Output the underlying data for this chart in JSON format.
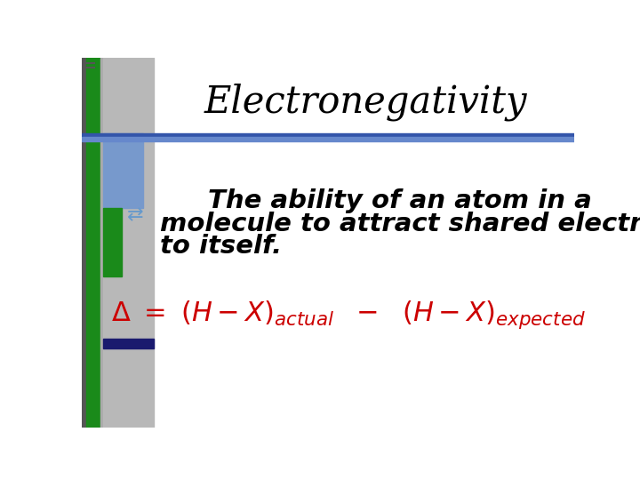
{
  "title": "Electronegativity",
  "title_fontsize": 30,
  "title_color": "#000000",
  "bg_color": "#ffffff",
  "bullet_text_line1": "The ability of an atom in a",
  "bullet_text_line2": "molecule to attract shared electrons",
  "bullet_text_line3": "to itself.",
  "bullet_fontsize": 21,
  "bullet_color": "#000000",
  "formula_color": "#cc0000",
  "formula_fontsize": 22,
  "sidebar_bg": "#c0c0c0",
  "green_color": "#1a8a1a",
  "blue_color": "#6699cc",
  "dark_navy": "#1a1a6e",
  "mid_blue": "#4477bb",
  "header_line_blue": "#4466bb",
  "header_line_thin": "#6699cc"
}
